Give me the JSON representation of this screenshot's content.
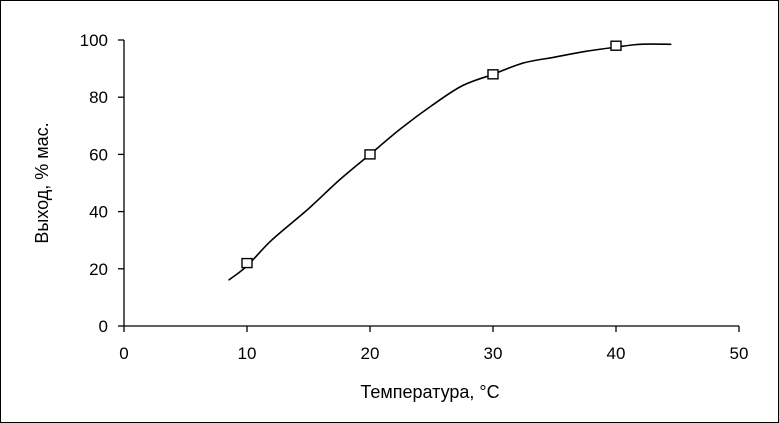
{
  "chart_data": {
    "type": "scatter",
    "title": "",
    "xlabel": "Температура, °С",
    "ylabel": "Выход, % мас.",
    "xlim": [
      0,
      50
    ],
    "ylim": [
      0,
      100
    ],
    "x_ticks": [
      "0",
      "10",
      "20",
      "30",
      "40",
      "50"
    ],
    "y_ticks": [
      "0",
      "20",
      "40",
      "60",
      "80",
      "100"
    ],
    "grid": false,
    "legend": "none",
    "series": [
      {
        "kind": "markers",
        "marker": "open-square",
        "color": "#000000",
        "x": [
          10,
          20,
          30,
          40
        ],
        "y": [
          22,
          60,
          88,
          98
        ]
      },
      {
        "kind": "smooth-line",
        "color": "#000000",
        "x": [
          8.5,
          10,
          12,
          15,
          17.5,
          20,
          22.5,
          25,
          27.5,
          30,
          32.5,
          35,
          37.5,
          40,
          42,
          44.5
        ],
        "y": [
          16,
          21,
          30,
          41,
          51,
          60,
          69,
          77,
          84,
          88,
          92,
          94,
          96,
          97.5,
          98.5,
          98.5
        ]
      }
    ]
  }
}
